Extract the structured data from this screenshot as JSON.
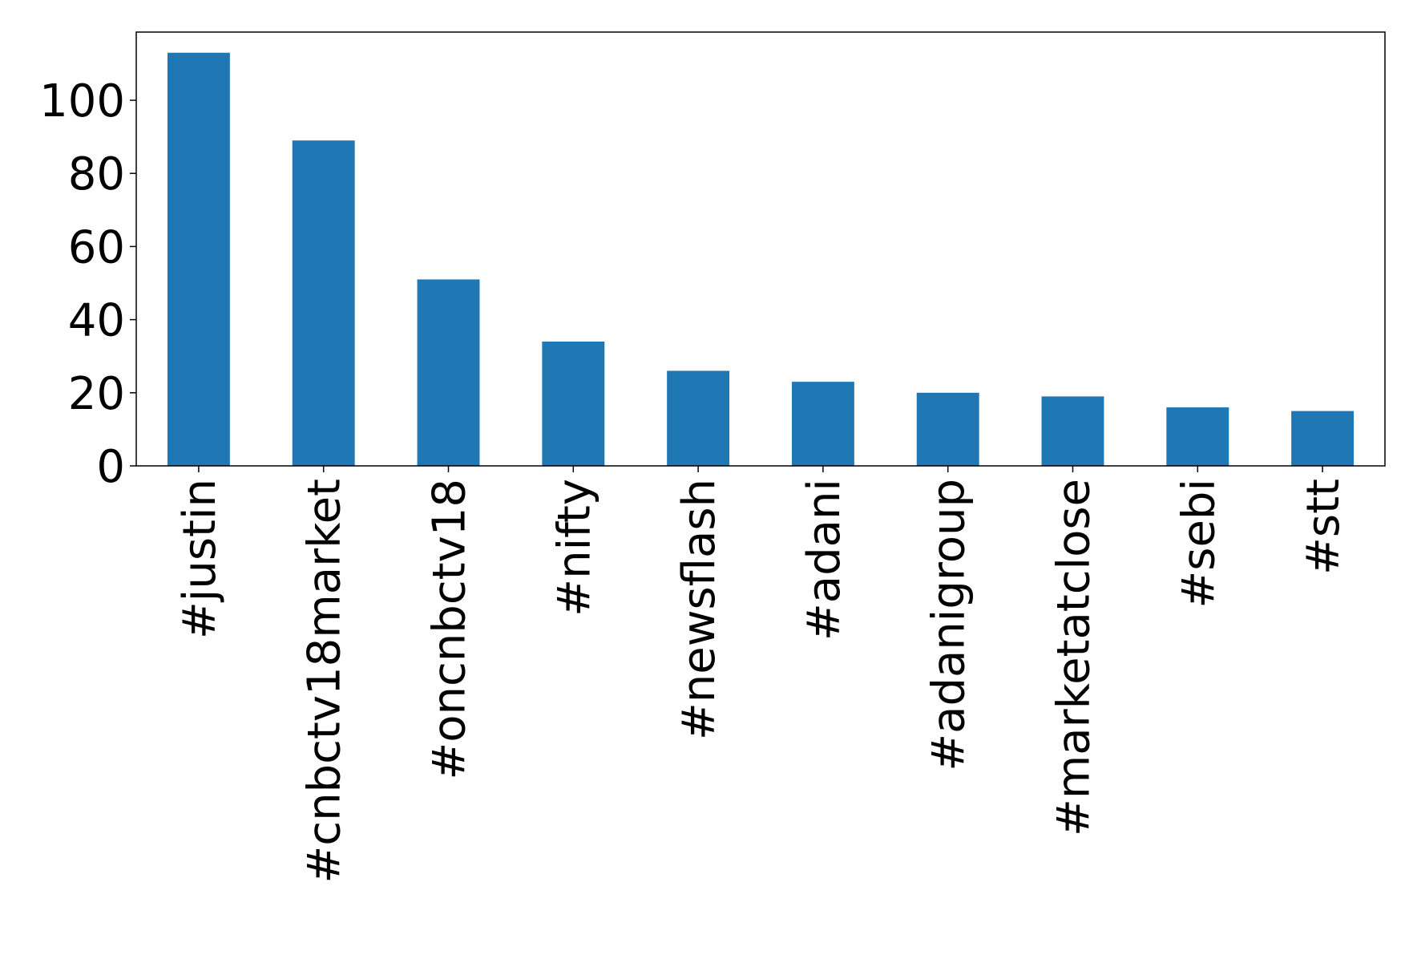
{
  "chart_data": {
    "type": "bar",
    "categories": [
      "#justin",
      "#cnbctv18market",
      "#oncnbctv18",
      "#nifty",
      "#newsflash",
      "#adani",
      "#adanigroup",
      "#marketatclose",
      "#sebi",
      "#stt"
    ],
    "values": [
      113,
      89,
      51,
      34,
      26,
      23,
      20,
      19,
      16,
      15
    ],
    "color": "#1f77b4",
    "ylim": [
      0,
      118.65
    ],
    "yticks": [
      0,
      20,
      40,
      60,
      80,
      100
    ]
  }
}
